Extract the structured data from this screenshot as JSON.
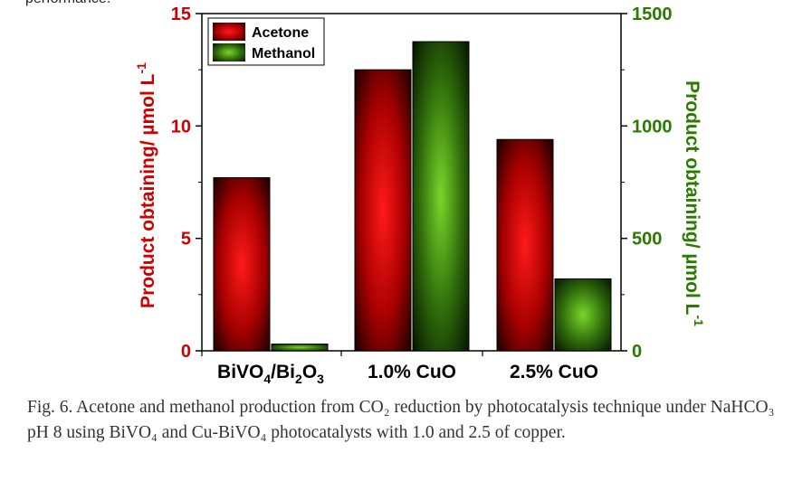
{
  "page": {
    "top_text": "performance.",
    "caption": "Fig. 6. Acetone and methanol production from CO₂ reduction by photocatalysis technique under NaHCO₃ pH 8 using BiVO₄ and Cu-BiVO₄ photocatalysts with 1.0 and 2.5 of copper."
  },
  "colors": {
    "acetone": "#cc0000",
    "methanol": "#3a8a00",
    "left_axis": "#cc0000",
    "right_axis": "#2a7a00"
  },
  "chart_data": {
    "type": "bar",
    "categories": [
      {
        "base": "BiVO",
        "sub1": "4",
        "mid": "/Bi",
        "sub2": "2",
        "mid2": "O",
        "sub3": "3"
      },
      {
        "base": "1.0% CuO"
      },
      {
        "base": "2.5% CuO"
      }
    ],
    "series": [
      {
        "name": "Acetone",
        "axis": "left",
        "values": [
          7.7,
          12.5,
          9.4
        ]
      },
      {
        "name": "Methanol",
        "axis": "right",
        "values": [
          30,
          1375,
          320
        ]
      }
    ],
    "y_left": {
      "label": "Product obtaining/ µmol L",
      "label_sup": "-1",
      "range": [
        0,
        15
      ],
      "ticks": [
        "0",
        "5",
        "10",
        "15"
      ]
    },
    "y_right": {
      "label": "Product obtaining/ µmol L",
      "label_sup": "-1",
      "range": [
        0,
        1500
      ],
      "ticks": [
        "0",
        "500",
        "1000",
        "1500"
      ]
    },
    "legend": {
      "placement": "top-left"
    },
    "grid": false
  }
}
